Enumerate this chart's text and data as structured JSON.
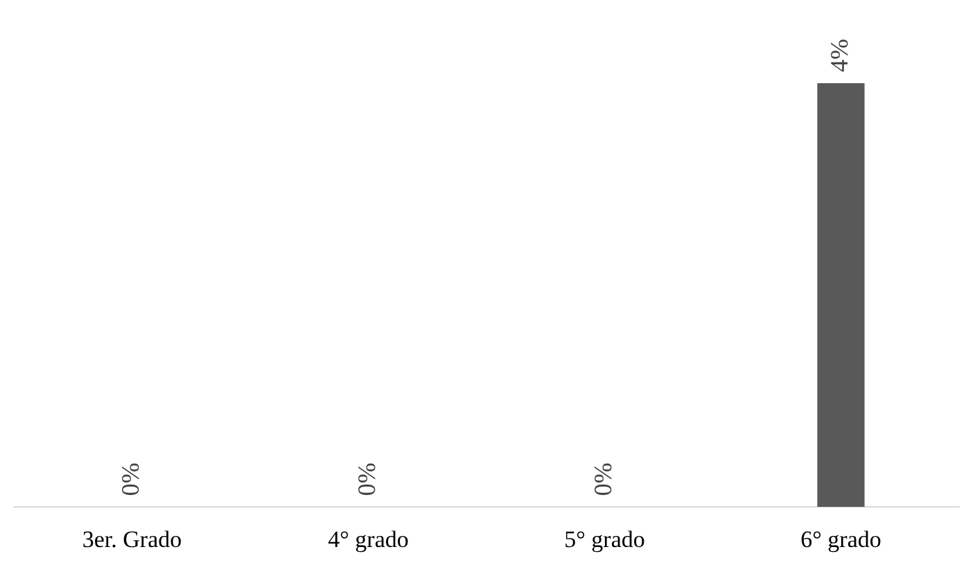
{
  "chart_data": {
    "type": "bar",
    "categories": [
      "3er. Grado",
      "4° grado",
      "5° grado",
      "6° grado"
    ],
    "values": [
      0,
      0,
      0,
      4
    ],
    "value_labels": [
      "0%",
      "0%",
      "0%",
      "4%"
    ],
    "color": "#595959",
    "grid": false,
    "legend": false,
    "tick_labels": "x"
  }
}
